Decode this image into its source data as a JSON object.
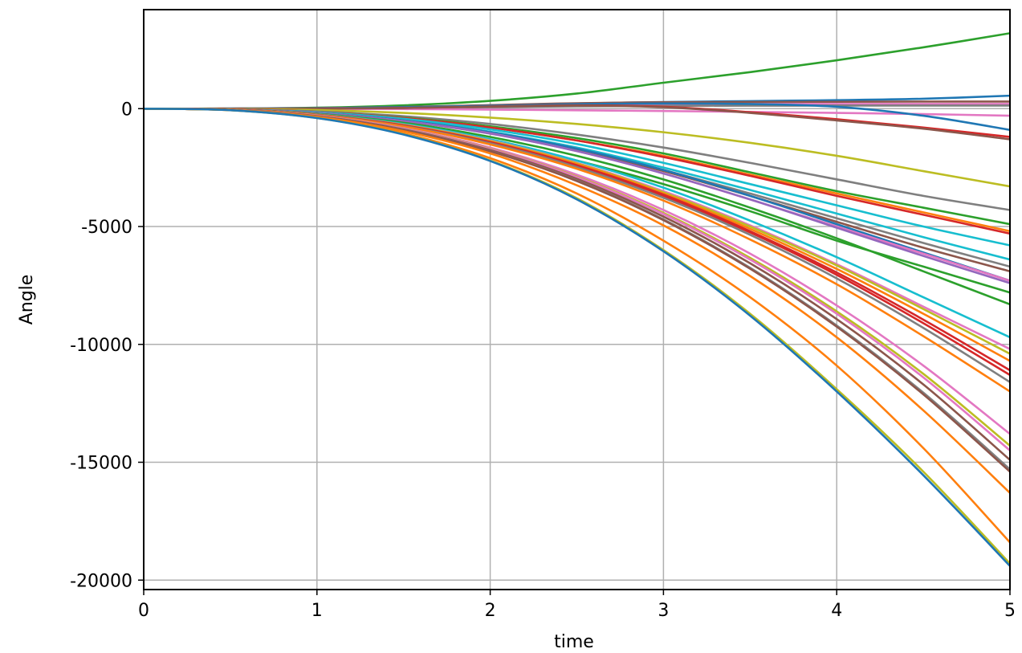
{
  "chart_data": {
    "type": "line",
    "title": "",
    "xlabel": "time",
    "ylabel": "Angle",
    "xlim": [
      0,
      5
    ],
    "ylim": [
      -20400,
      4200
    ],
    "xticks": [
      0,
      1,
      2,
      3,
      4,
      5
    ],
    "xtick_labels": [
      "0",
      "1",
      "2",
      "3",
      "4",
      "5"
    ],
    "yticks": [
      0,
      -5000,
      -10000,
      -15000,
      -20000
    ],
    "ytick_labels": [
      "0",
      "-5000",
      "-10000",
      "-15000",
      "-20000"
    ],
    "grid": true,
    "legend": "none",
    "x": [
      0,
      0.5,
      1,
      1.5,
      2,
      2.5,
      3,
      3.5,
      4,
      4.5,
      5
    ],
    "series": [
      {
        "color": "#2ca02c",
        "values": [
          0,
          5,
          40,
          140,
          330,
          640,
          1100,
          1550,
          2050,
          2600,
          3200
        ]
      },
      {
        "color": "#1f77b4",
        "values": [
          0,
          2,
          20,
          70,
          140,
          220,
          280,
          320,
          360,
          420,
          550
        ]
      },
      {
        "color": "#8c564b",
        "values": [
          0,
          2,
          20,
          70,
          150,
          230,
          270,
          280,
          290,
          300,
          300
        ]
      },
      {
        "color": "#e377c2",
        "values": [
          0,
          2,
          15,
          50,
          110,
          160,
          190,
          200,
          200,
          200,
          200
        ]
      },
      {
        "color": "#7f7f7f",
        "values": [
          0,
          0,
          5,
          25,
          60,
          100,
          120,
          125,
          130,
          130,
          130
        ]
      },
      {
        "color": "#e377c2",
        "values": [
          0,
          -2,
          -8,
          -20,
          -40,
          -70,
          -100,
          -140,
          -180,
          -230,
          -300
        ]
      },
      {
        "color": "#1f77b4",
        "values": [
          0,
          2,
          15,
          60,
          120,
          190,
          220,
          200,
          80,
          -300,
          -900
        ]
      },
      {
        "color": "#d62728",
        "values": [
          0,
          0,
          5,
          30,
          90,
          140,
          80,
          -150,
          -450,
          -800,
          -1200
        ]
      },
      {
        "color": "#8c564b",
        "values": [
          0,
          0,
          5,
          30,
          90,
          130,
          60,
          -180,
          -500,
          -850,
          -1300
        ]
      },
      {
        "color": "#bcbd22",
        "values": [
          0,
          -10,
          -60,
          -180,
          -380,
          -650,
          -1000,
          -1450,
          -2000,
          -2650,
          -3300
        ]
      },
      {
        "color": "#7f7f7f",
        "values": [
          0,
          -20,
          -120,
          -320,
          -650,
          -1100,
          -1650,
          -2300,
          -3000,
          -3700,
          -4300
        ]
      },
      {
        "color": "#2ca02c",
        "values": [
          0,
          -20,
          -140,
          -380,
          -750,
          -1250,
          -1900,
          -2700,
          -3500,
          -4200,
          -4900
        ]
      },
      {
        "color": "#ff7f0e",
        "values": [
          0,
          -20,
          -140,
          -400,
          -800,
          -1350,
          -2000,
          -2800,
          -3600,
          -4400,
          -5200
        ]
      },
      {
        "color": "#d62728",
        "values": [
          0,
          -20,
          -140,
          -400,
          -800,
          -1350,
          -2050,
          -2850,
          -3700,
          -4500,
          -5300
        ]
      },
      {
        "color": "#17becf",
        "values": [
          0,
          -25,
          -150,
          -430,
          -880,
          -1500,
          -2300,
          -3200,
          -4100,
          -5000,
          -5800
        ]
      },
      {
        "color": "#17becf",
        "values": [
          0,
          -30,
          -170,
          -480,
          -980,
          -1650,
          -2500,
          -3450,
          -4450,
          -5450,
          -6400
        ]
      },
      {
        "color": "#7f7f7f",
        "values": [
          0,
          -30,
          -180,
          -500,
          -1020,
          -1700,
          -2600,
          -3600,
          -4650,
          -5700,
          -6700
        ]
      },
      {
        "color": "#8c564b",
        "values": [
          0,
          -30,
          -190,
          -520,
          -1050,
          -1750,
          -2650,
          -3700,
          -4800,
          -5900,
          -6900
        ]
      },
      {
        "color": "#1f77b4",
        "values": [
          0,
          -30,
          -180,
          -500,
          -1000,
          -1700,
          -2600,
          -3700,
          -4900,
          -6100,
          -7300
        ]
      },
      {
        "color": "#e377c2",
        "values": [
          0,
          -30,
          -190,
          -530,
          -1050,
          -1800,
          -2750,
          -3850,
          -5000,
          -6150,
          -7300
        ]
      },
      {
        "color": "#9467bd",
        "values": [
          0,
          -30,
          -190,
          -530,
          -1060,
          -1800,
          -2750,
          -3850,
          -5050,
          -6250,
          -7400
        ]
      },
      {
        "color": "#2ca02c",
        "values": [
          0,
          -35,
          -220,
          -600,
          -1200,
          -2000,
          -3000,
          -4200,
          -5500,
          -6900,
          -8300
        ]
      },
      {
        "color": "#2ca02c",
        "values": [
          0,
          -40,
          -250,
          -700,
          -1350,
          -2200,
          -3200,
          -4350,
          -5600,
          -6700,
          -7800
        ]
      },
      {
        "color": "#17becf",
        "values": [
          0,
          -40,
          -240,
          -650,
          -1300,
          -2200,
          -3350,
          -4750,
          -6300,
          -8000,
          -9700
        ]
      },
      {
        "color": "#e377c2",
        "values": [
          0,
          -40,
          -250,
          -680,
          -1350,
          -2300,
          -3500,
          -4950,
          -6600,
          -8400,
          -10200
        ]
      },
      {
        "color": "#bcbd22",
        "values": [
          0,
          -40,
          -250,
          -690,
          -1370,
          -2320,
          -3550,
          -5000,
          -6650,
          -8500,
          -10400
        ]
      },
      {
        "color": "#ff7f0e",
        "values": [
          0,
          -40,
          -260,
          -700,
          -1400,
          -2350,
          -3600,
          -5100,
          -6800,
          -8700,
          -10700
        ]
      },
      {
        "color": "#d62728",
        "values": [
          0,
          -40,
          -260,
          -710,
          -1420,
          -2400,
          -3650,
          -5200,
          -6950,
          -8950,
          -11100
        ]
      },
      {
        "color": "#d62728",
        "values": [
          0,
          -40,
          -260,
          -720,
          -1440,
          -2430,
          -3700,
          -5250,
          -7050,
          -9100,
          -11300
        ]
      },
      {
        "color": "#7f7f7f",
        "values": [
          0,
          -45,
          -270,
          -740,
          -1470,
          -2480,
          -3780,
          -5350,
          -7200,
          -9300,
          -11600
        ]
      },
      {
        "color": "#ff7f0e",
        "values": [
          0,
          -45,
          -280,
          -760,
          -1520,
          -2550,
          -3900,
          -5550,
          -7450,
          -9650,
          -12000
        ]
      },
      {
        "color": "#e377c2",
        "values": [
          0,
          -50,
          -300,
          -830,
          -1650,
          -2800,
          -4300,
          -6150,
          -8350,
          -10900,
          -13800
        ]
      },
      {
        "color": "#bcbd22",
        "values": [
          0,
          -50,
          -310,
          -850,
          -1700,
          -2880,
          -4420,
          -6330,
          -8600,
          -11250,
          -14300
        ]
      },
      {
        "color": "#e377c2",
        "values": [
          0,
          -50,
          -310,
          -860,
          -1720,
          -2910,
          -4470,
          -6400,
          -8700,
          -11400,
          -14500
        ]
      },
      {
        "color": "#8c564b",
        "values": [
          0,
          -55,
          -320,
          -880,
          -1760,
          -2980,
          -4580,
          -6560,
          -8930,
          -11700,
          -14900
        ]
      },
      {
        "color": "#7f7f7f",
        "values": [
          0,
          -55,
          -330,
          -900,
          -1800,
          -3050,
          -4700,
          -6750,
          -9200,
          -12050,
          -15300
        ]
      },
      {
        "color": "#8c564b",
        "values": [
          0,
          -55,
          -330,
          -910,
          -1810,
          -3070,
          -4730,
          -6790,
          -9250,
          -12120,
          -15400
        ]
      },
      {
        "color": "#ff7f0e",
        "values": [
          0,
          -60,
          -350,
          -960,
          -1900,
          -3250,
          -4950,
          -7100,
          -9700,
          -12800,
          -16300
        ]
      },
      {
        "color": "#ff7f0e",
        "values": [
          0,
          -65,
          -380,
          -1050,
          -2100,
          -3600,
          -5600,
          -8000,
          -10900,
          -14400,
          -18400
        ]
      },
      {
        "color": "#bcbd22",
        "values": [
          0,
          -65,
          -395,
          -1085,
          -2200,
          -3800,
          -6000,
          -8700,
          -11900,
          -15400,
          -19300
        ]
      },
      {
        "color": "#1f77b4",
        "values": [
          0,
          -65,
          -400,
          -1100,
          -2220,
          -3850,
          -6050,
          -8780,
          -12000,
          -15550,
          -19400
        ]
      }
    ]
  }
}
